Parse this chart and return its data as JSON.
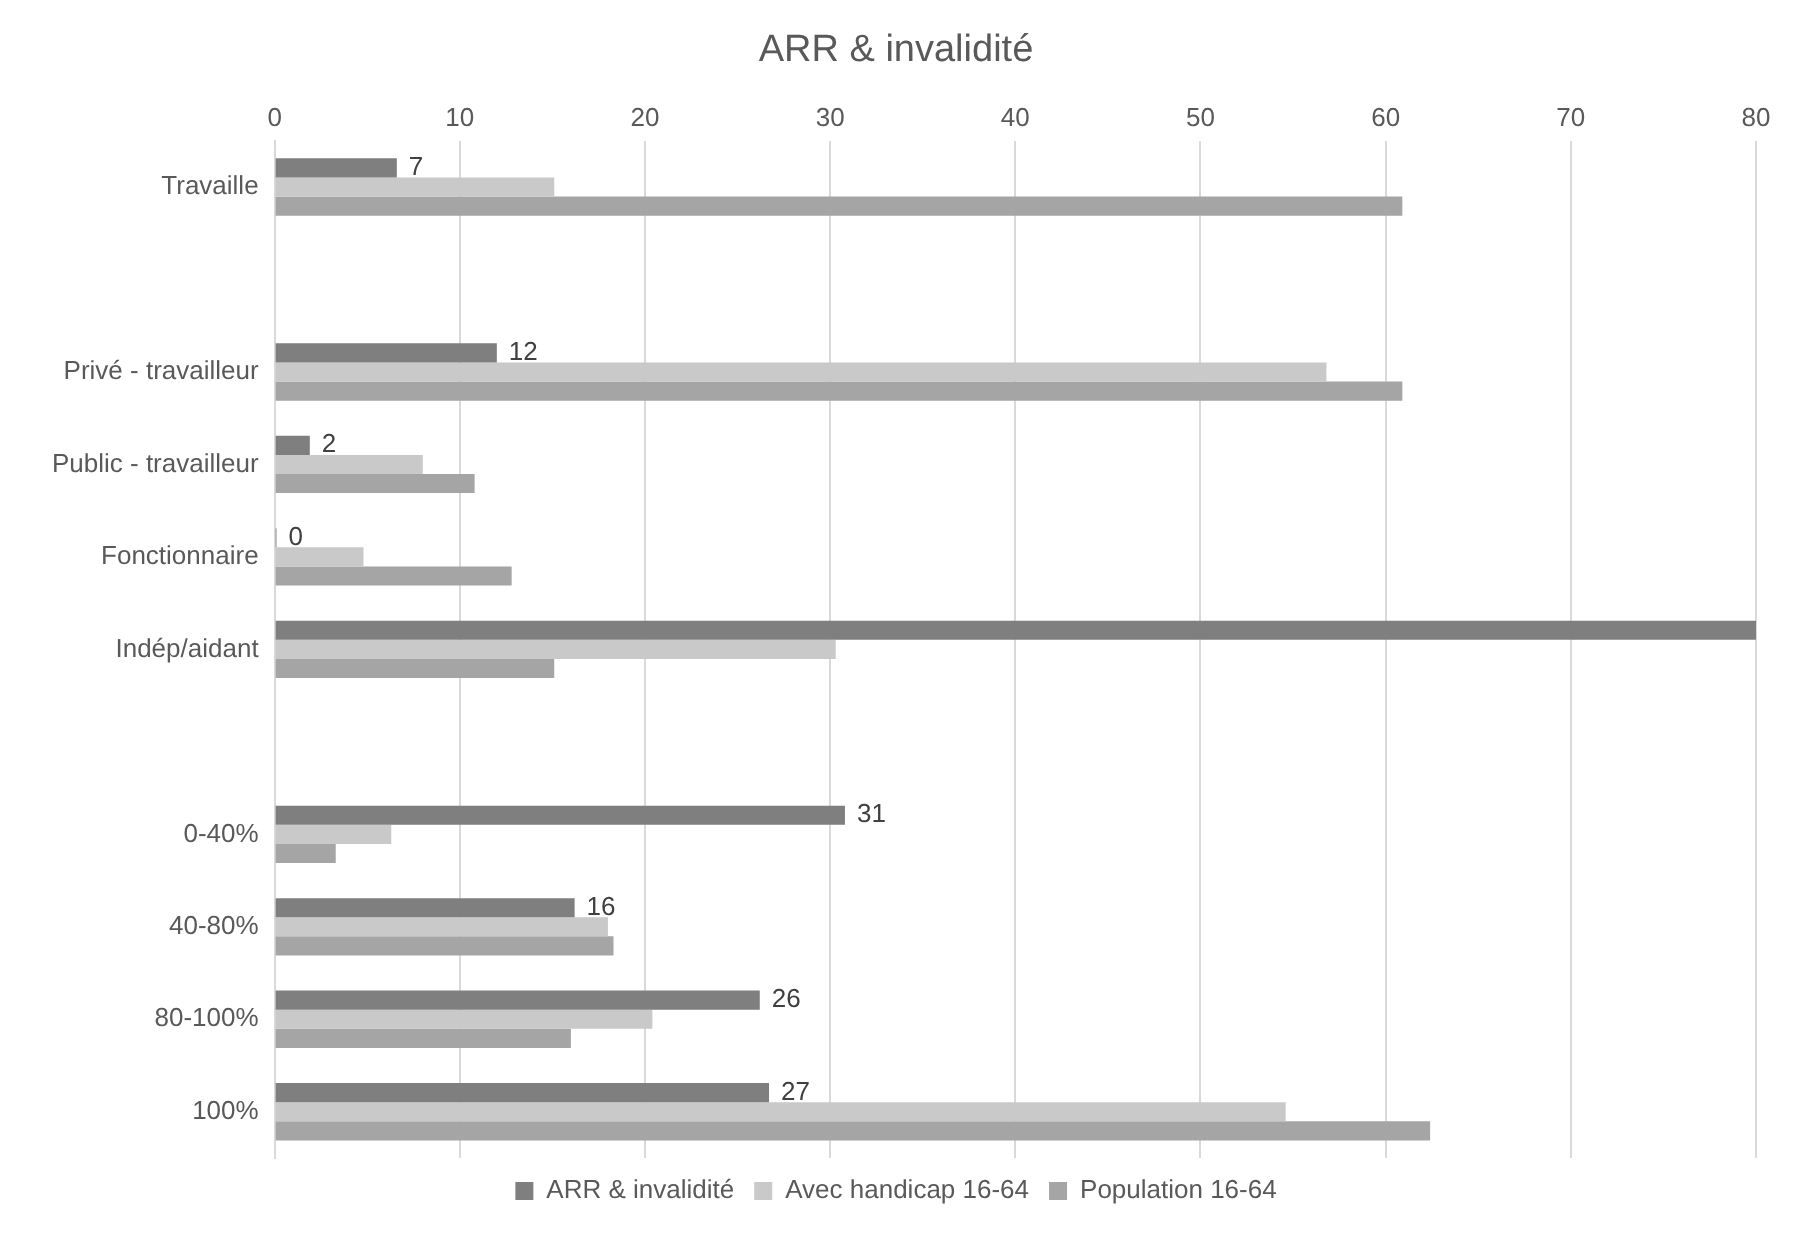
{
  "chart_data": {
    "type": "bar",
    "orientation": "horizontal",
    "title": "ARR & invalidité",
    "categories": [
      "Travaille",
      null,
      "Privé - travailleur",
      "Public - travailleur",
      "Fonctionnaire",
      "Indép/aidant",
      null,
      "0-40%",
      "40-80%",
      "80-100%",
      "100%"
    ],
    "series": [
      {
        "name": "ARR & invalidité",
        "color": "#7f7f7f",
        "values": [
          6.6,
          null,
          12.0,
          1.9,
          0.1,
          80,
          null,
          30.8,
          16.2,
          26.2,
          26.7
        ],
        "value_labels": [
          "7",
          null,
          "12",
          "2",
          "0",
          null,
          null,
          "31",
          "16",
          "26",
          "27"
        ]
      },
      {
        "name": "Avec handicap 16-64",
        "color": "#c9c9c9",
        "values": [
          15.1,
          null,
          56.8,
          8.0,
          4.8,
          30.3,
          null,
          6.3,
          18.0,
          20.4,
          54.6
        ]
      },
      {
        "name": "Population 16-64",
        "color": "#a5a5a5",
        "values": [
          60.9,
          null,
          60.9,
          10.8,
          12.8,
          15.1,
          null,
          3.3,
          18.3,
          16.0,
          62.4
        ]
      }
    ],
    "xlim": [
      0,
      80
    ],
    "xticks": [
      0,
      10,
      20,
      30,
      40,
      50,
      60,
      70,
      80
    ],
    "grid": "x",
    "legend": "bottom"
  }
}
